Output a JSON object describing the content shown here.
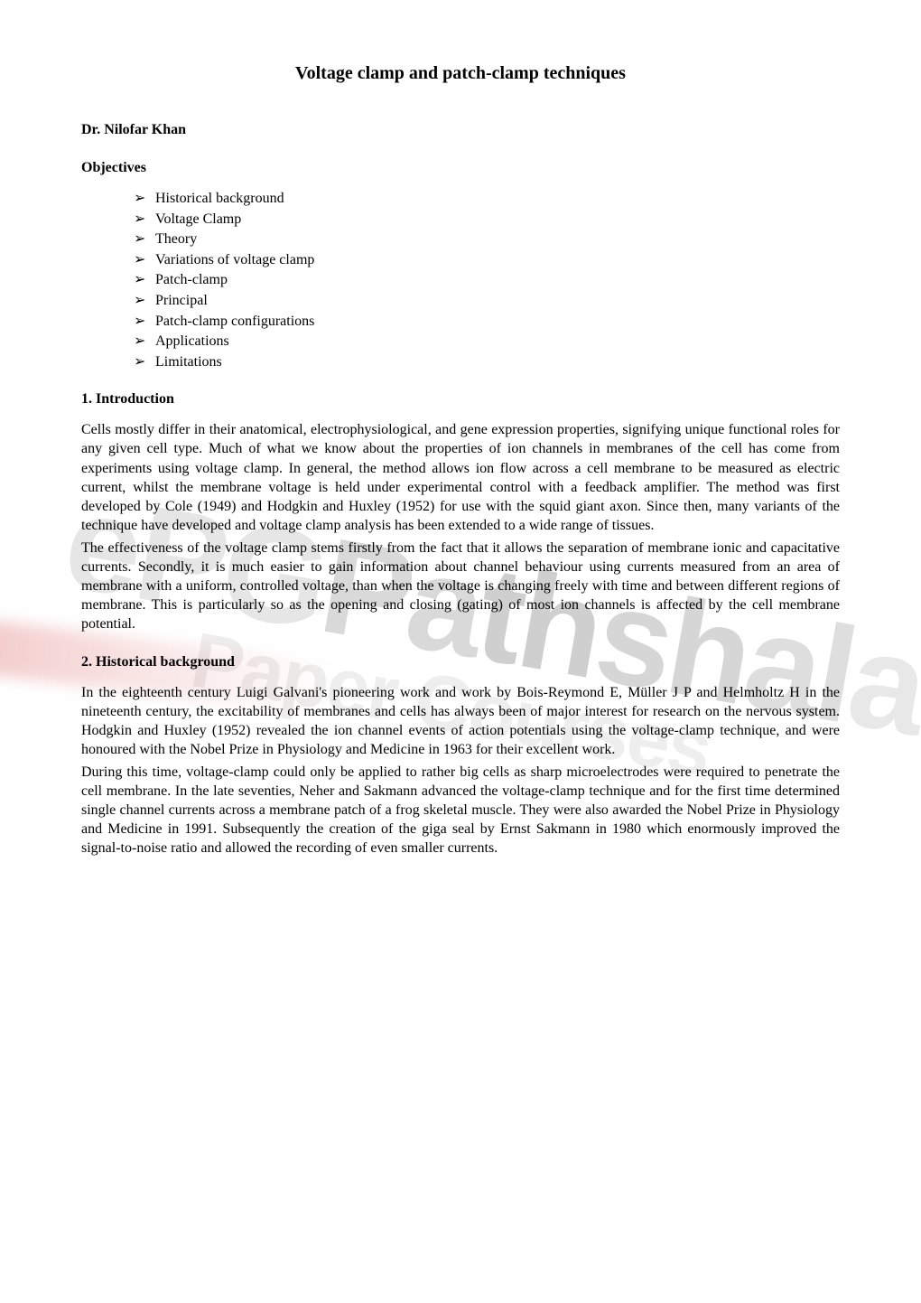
{
  "title": "Voltage clamp and patch-clamp techniques",
  "author": "Dr. Nilofar Khan",
  "objectives": {
    "heading": "Objectives",
    "items": [
      "Historical background",
      "Voltage Clamp",
      "Theory",
      "Variations of voltage clamp",
      "Patch-clamp",
      "Principal",
      "Patch-clamp configurations",
      "Applications",
      "Limitations"
    ]
  },
  "sections": {
    "intro": {
      "heading": "1. Introduction",
      "para1": "Cells mostly differ in their anatomical, electrophysiological, and gene expression properties, signifying unique functional roles for any given cell type. Much of what we know about the properties of ion channels in membranes of the cell has come from experiments using voltage clamp. In general, the method allows ion flow across a cell membrane to be measured as electric current, whilst the membrane voltage is held under experimental control with a feedback amplifier. The method was first developed by Cole (1949) and Hodgkin and Huxley (1952) for use with the squid giant axon. Since then, many variants of the technique have developed and voltage clamp analysis has been extended to a wide range of tissues.",
      "para2": "The effectiveness of the voltage clamp stems firstly from the fact that it allows the separation of membrane ionic and capacitative currents. Secondly, it is much easier to gain information about channel behaviour using currents measured from an area of membrane with a uniform, controlled voltage, than when the voltage is changing freely with time and between different regions of membrane. This is particularly so as the opening and closing (gating) of most ion channels is affected by the cell membrane potential."
    },
    "historical": {
      "heading": "2. Historical background",
      "para1": "In the eighteenth century Luigi Galvani's pioneering work and work by Bois-Reymond E, Müller J P and Helmholtz H in the nineteenth century, the excitability of membranes and cells has always been of major interest for research on the nervous system. Hodgkin and Huxley (1952) revealed the ion channel events of action potentials using the voltage-clamp technique, and were honoured with the Nobel Prize in Physiology and Medicine in 1963 for their excellent work.",
      "para2": "During this time, voltage-clamp could only be applied to rather big cells as sharp microelectrodes were required to penetrate the cell membrane. In the late seventies, Neher and Sakmann advanced the voltage-clamp technique and for the first time determined single channel currents across a membrane patch of a frog skeletal muscle. They were also awarded the Nobel Prize in Physiology and Medicine in 1991. Subsequently the creation of the giga seal by Ernst Sakmann in 1980 which enormously improved the signal-to-noise ratio and allowed the recording of even smaller currents."
    }
  },
  "watermark": {
    "line1": "ePGPathshala",
    "line2": "Paper Courses"
  },
  "colors": {
    "text": "#000000",
    "background": "#ffffff",
    "watermark_grey": "#e0e0e0",
    "watermark_red": "#c91010"
  },
  "typography": {
    "body_font": "Times New Roman",
    "title_size_pt": 15,
    "heading_size_pt": 12,
    "body_size_pt": 12,
    "watermark_font": "Arial"
  }
}
